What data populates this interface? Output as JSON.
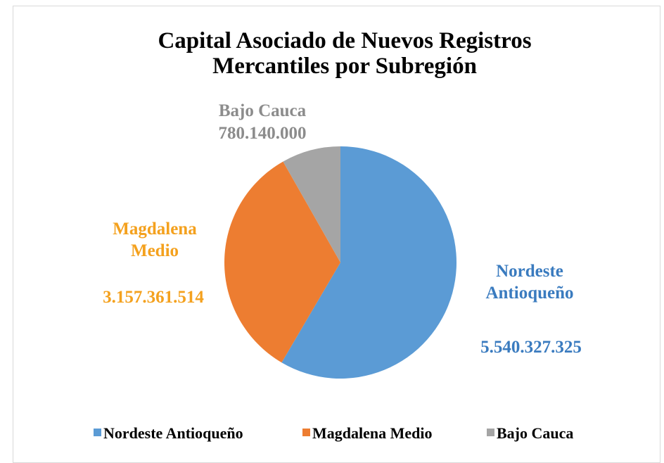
{
  "chart_data": {
    "type": "pie",
    "title": "Capital Asociado de Nuevos Registros Mercantiles por Subregión",
    "categories": [
      "Nordeste Antioqueño",
      "Magdalena Medio",
      "Bajo Cauca"
    ],
    "values": [
      5540327325,
      3157361514,
      780140000
    ],
    "value_labels": [
      "5.540.327.325",
      "3.157.361.514",
      "780.140.000"
    ],
    "colors": [
      "#5b9bd5",
      "#ed7d31",
      "#a5a5a5"
    ],
    "label_colors": [
      "#3a7bbf",
      "#f4a11e",
      "#8c8c8c"
    ],
    "legend": "bottom"
  }
}
